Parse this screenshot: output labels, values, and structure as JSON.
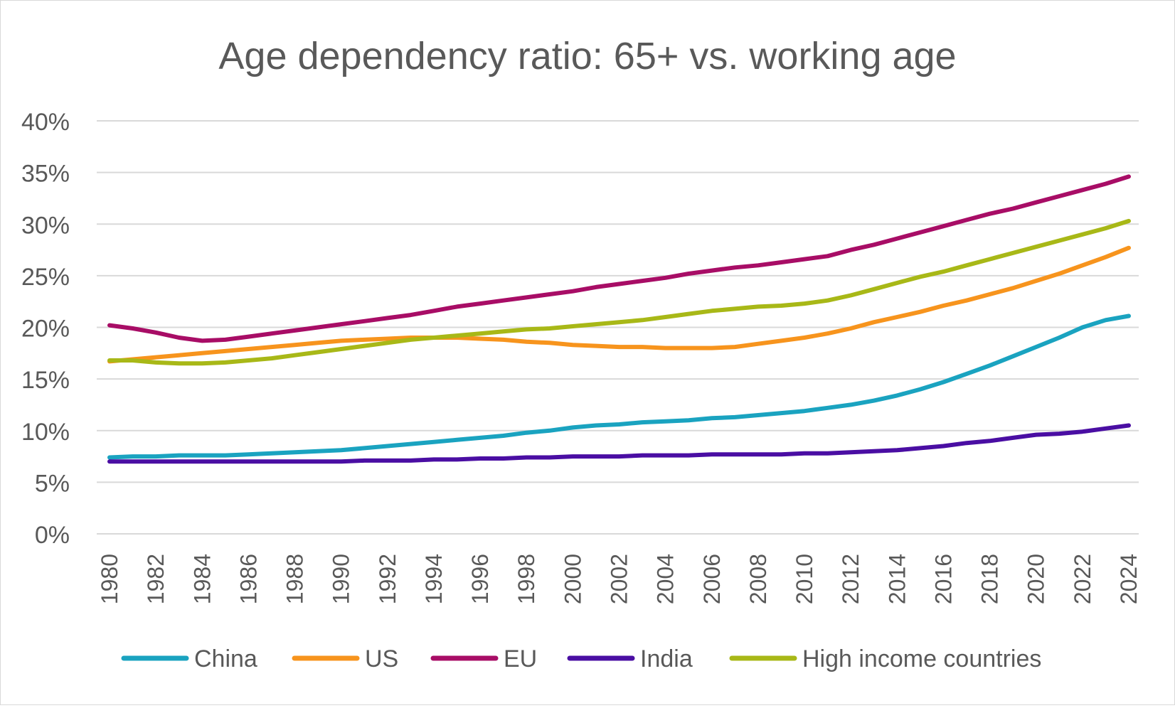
{
  "chart_data": {
    "type": "line",
    "title": "Age dependency ratio: 65+ vs. working age",
    "xlabel": "",
    "ylabel": "",
    "ylim": [
      0,
      40
    ],
    "yticks": [
      "0%",
      "5%",
      "10%",
      "15%",
      "20%",
      "25%",
      "30%",
      "35%",
      "40%"
    ],
    "ytick_values": [
      0,
      5,
      10,
      15,
      20,
      25,
      30,
      35,
      40
    ],
    "grid": true,
    "legend_position": "bottom",
    "x": [
      1980,
      1981,
      1982,
      1983,
      1984,
      1985,
      1986,
      1987,
      1988,
      1989,
      1990,
      1991,
      1992,
      1993,
      1994,
      1995,
      1996,
      1997,
      1998,
      1999,
      2000,
      2001,
      2002,
      2003,
      2004,
      2005,
      2006,
      2007,
      2008,
      2009,
      2010,
      2011,
      2012,
      2013,
      2014,
      2015,
      2016,
      2017,
      2018,
      2019,
      2020,
      2021,
      2022,
      2023,
      2024
    ],
    "xtick_labels": [
      "1980",
      "1982",
      "1984",
      "1986",
      "1988",
      "1990",
      "1992",
      "1994",
      "1996",
      "1998",
      "2000",
      "2002",
      "2004",
      "2006",
      "2008",
      "2010",
      "2012",
      "2014",
      "2016",
      "2018",
      "2020",
      "2022",
      "2024"
    ],
    "series": [
      {
        "name": "China",
        "color": "#1aa3c0",
        "values": [
          7.4,
          7.5,
          7.5,
          7.6,
          7.6,
          7.6,
          7.7,
          7.8,
          7.9,
          8.0,
          8.1,
          8.3,
          8.5,
          8.7,
          8.9,
          9.1,
          9.3,
          9.5,
          9.8,
          10.0,
          10.3,
          10.5,
          10.6,
          10.8,
          10.9,
          11.0,
          11.2,
          11.3,
          11.5,
          11.7,
          11.9,
          12.2,
          12.5,
          12.9,
          13.4,
          14.0,
          14.7,
          15.5,
          16.3,
          17.2,
          18.1,
          19.0,
          20.0,
          20.7,
          21.1
        ]
      },
      {
        "name": "US",
        "color": "#f7941d",
        "values": [
          16.7,
          16.9,
          17.1,
          17.3,
          17.5,
          17.7,
          17.9,
          18.1,
          18.3,
          18.5,
          18.7,
          18.8,
          18.9,
          19.0,
          19.0,
          19.0,
          18.9,
          18.8,
          18.6,
          18.5,
          18.3,
          18.2,
          18.1,
          18.1,
          18.0,
          18.0,
          18.0,
          18.1,
          18.4,
          18.7,
          19.0,
          19.4,
          19.9,
          20.5,
          21.0,
          21.5,
          22.1,
          22.6,
          23.2,
          23.8,
          24.5,
          25.2,
          26.0,
          26.8,
          27.7
        ]
      },
      {
        "name": "EU",
        "color": "#a80d66",
        "values": [
          20.2,
          19.9,
          19.5,
          19.0,
          18.7,
          18.8,
          19.1,
          19.4,
          19.7,
          20.0,
          20.3,
          20.6,
          20.9,
          21.2,
          21.6,
          22.0,
          22.3,
          22.6,
          22.9,
          23.2,
          23.5,
          23.9,
          24.2,
          24.5,
          24.8,
          25.2,
          25.5,
          25.8,
          26.0,
          26.3,
          26.6,
          26.9,
          27.5,
          28.0,
          28.6,
          29.2,
          29.8,
          30.4,
          31.0,
          31.5,
          32.1,
          32.7,
          33.3,
          33.9,
          34.6
        ]
      },
      {
        "name": "India",
        "color": "#4a0ea3",
        "values": [
          7.0,
          7.0,
          7.0,
          7.0,
          7.0,
          7.0,
          7.0,
          7.0,
          7.0,
          7.0,
          7.0,
          7.1,
          7.1,
          7.1,
          7.2,
          7.2,
          7.3,
          7.3,
          7.4,
          7.4,
          7.5,
          7.5,
          7.5,
          7.6,
          7.6,
          7.6,
          7.7,
          7.7,
          7.7,
          7.7,
          7.8,
          7.8,
          7.9,
          8.0,
          8.1,
          8.3,
          8.5,
          8.8,
          9.0,
          9.3,
          9.6,
          9.7,
          9.9,
          10.2,
          10.5
        ]
      },
      {
        "name": "High income countries",
        "color": "#a8b817",
        "values": [
          16.8,
          16.8,
          16.6,
          16.5,
          16.5,
          16.6,
          16.8,
          17.0,
          17.3,
          17.6,
          17.9,
          18.2,
          18.5,
          18.8,
          19.0,
          19.2,
          19.4,
          19.6,
          19.8,
          19.9,
          20.1,
          20.3,
          20.5,
          20.7,
          21.0,
          21.3,
          21.6,
          21.8,
          22.0,
          22.1,
          22.3,
          22.6,
          23.1,
          23.7,
          24.3,
          24.9,
          25.4,
          26.0,
          26.6,
          27.2,
          27.8,
          28.4,
          29.0,
          29.6,
          30.3
        ]
      }
    ],
    "gridline_color": "#d9d9d9"
  }
}
